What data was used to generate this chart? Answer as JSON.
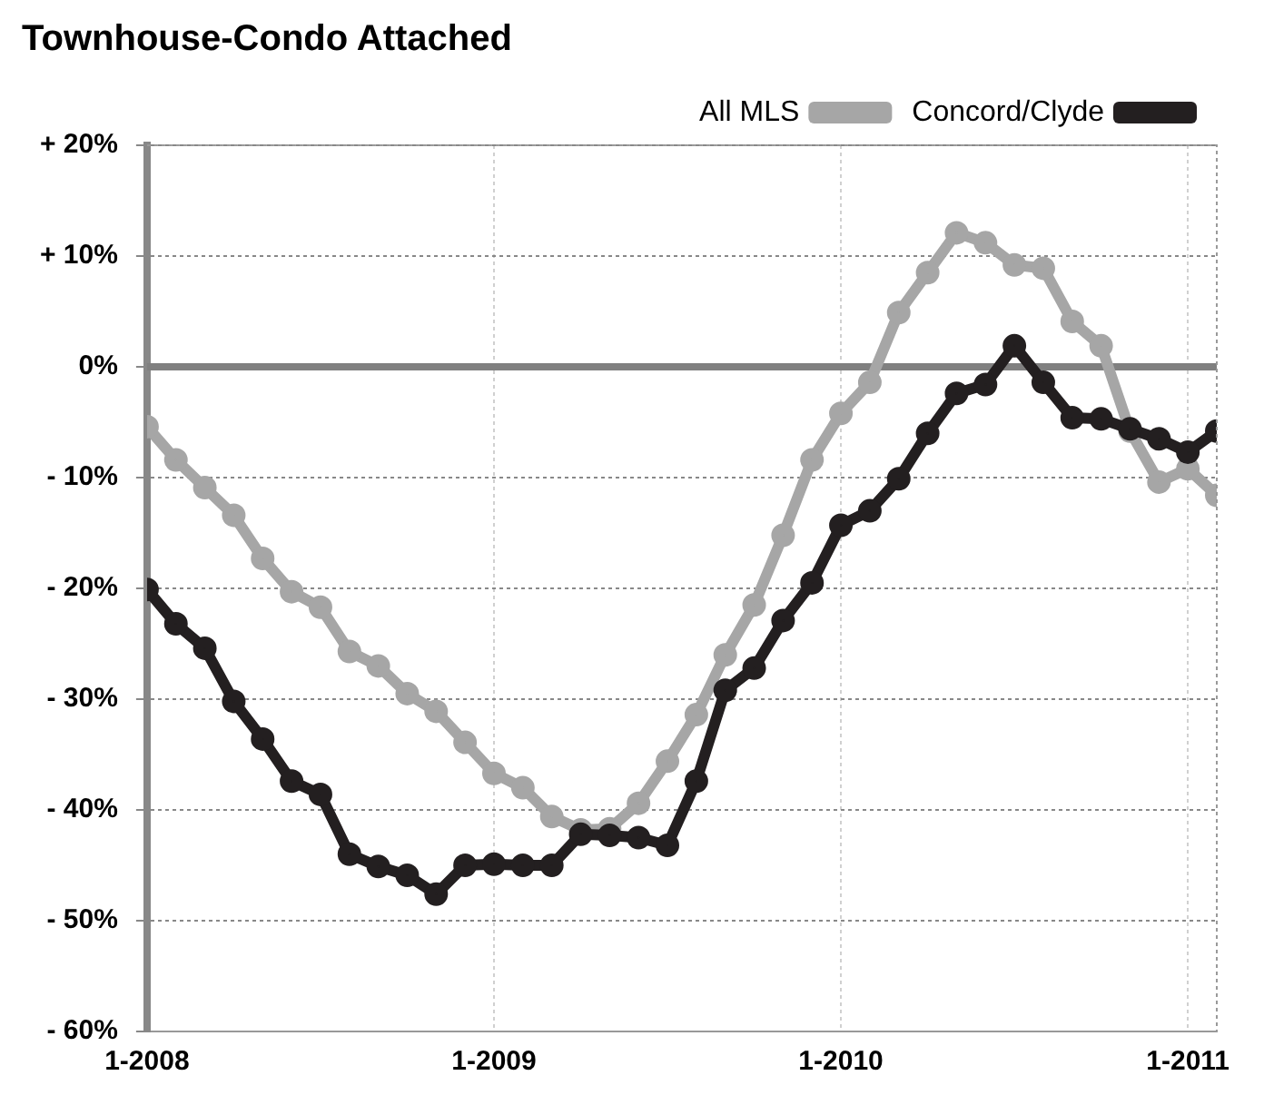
{
  "chart_data": {
    "type": "line",
    "title": "Townhouse-Condo Attached",
    "x": [
      "2008-01",
      "2008-02",
      "2008-03",
      "2008-04",
      "2008-05",
      "2008-06",
      "2008-07",
      "2008-08",
      "2008-09",
      "2008-10",
      "2008-11",
      "2008-12",
      "2009-01",
      "2009-02",
      "2009-03",
      "2009-04",
      "2009-05",
      "2009-06",
      "2009-07",
      "2009-08",
      "2009-09",
      "2009-10",
      "2009-11",
      "2009-12",
      "2010-01",
      "2010-02",
      "2010-03",
      "2010-04",
      "2010-05",
      "2010-06",
      "2010-07",
      "2010-08",
      "2010-09",
      "2010-10",
      "2010-11",
      "2010-12",
      "2011-01",
      "2011-02"
    ],
    "series": [
      {
        "name": "All MLS",
        "color": "#a6a6a6",
        "values": [
          -5.4,
          -8.4,
          -10.9,
          -13.4,
          -17.3,
          -20.3,
          -21.7,
          -25.7,
          -27.0,
          -29.5,
          -31.1,
          -33.9,
          -36.7,
          -38,
          -40.6,
          -41.8,
          -41.7,
          -39.4,
          -35.6,
          -31.4,
          -26.0,
          -21.5,
          -15.2,
          -8.4,
          -4.2,
          -1.4,
          4.9,
          8.5,
          12.1,
          11.2,
          9.2,
          8.9,
          4.1,
          1.9,
          -5.8,
          -10.4,
          -9.2,
          -11.6
        ]
      },
      {
        "name": "Concord/Clyde",
        "color": "#231f20",
        "values": [
          -20.1,
          -23.2,
          -25.4,
          -30.2,
          -33.6,
          -37.4,
          -38.6,
          -44.0,
          -45.1,
          -45.9,
          -47.6,
          -45.0,
          -44.9,
          -45.0,
          -45.0,
          -42.2,
          -42.3,
          -42.5,
          -43.2,
          -37.4,
          -29.2,
          -27.2,
          -22.9,
          -19.5,
          -14.3,
          -13.0,
          -10.1,
          -6.0,
          -2.4,
          -1.6,
          1.9,
          -1.4,
          -4.6,
          -4.7,
          -5.6,
          -6.5,
          -7.7,
          -5.8
        ]
      }
    ],
    "xlim": [
      "2008-01",
      "2011-02"
    ],
    "xticks": [
      {
        "value": "2008-01",
        "label": "1-2008"
      },
      {
        "value": "2009-01",
        "label": "1-2009"
      },
      {
        "value": "2010-01",
        "label": "1-2010"
      },
      {
        "value": "2011-01",
        "label": "1-2011"
      }
    ],
    "ylim": [
      -60,
      20
    ],
    "yticks": [
      {
        "value": -60,
        "label": "- 60%"
      },
      {
        "value": -50,
        "label": "- 50%"
      },
      {
        "value": -40,
        "label": "- 40%"
      },
      {
        "value": -30,
        "label": "- 30%"
      },
      {
        "value": -20,
        "label": "- 20%"
      },
      {
        "value": -10,
        "label": "- 10%"
      },
      {
        "value": 0,
        "label": "0%"
      },
      {
        "value": 10,
        "label": "+ 10%"
      },
      {
        "value": 20,
        "label": "+ 20%"
      }
    ],
    "ref_lines": [
      {
        "axis": "y",
        "value": 0,
        "color": "#808080"
      }
    ],
    "grid": true,
    "legend": "top right",
    "marker": "circle",
    "line_style": "solid"
  }
}
